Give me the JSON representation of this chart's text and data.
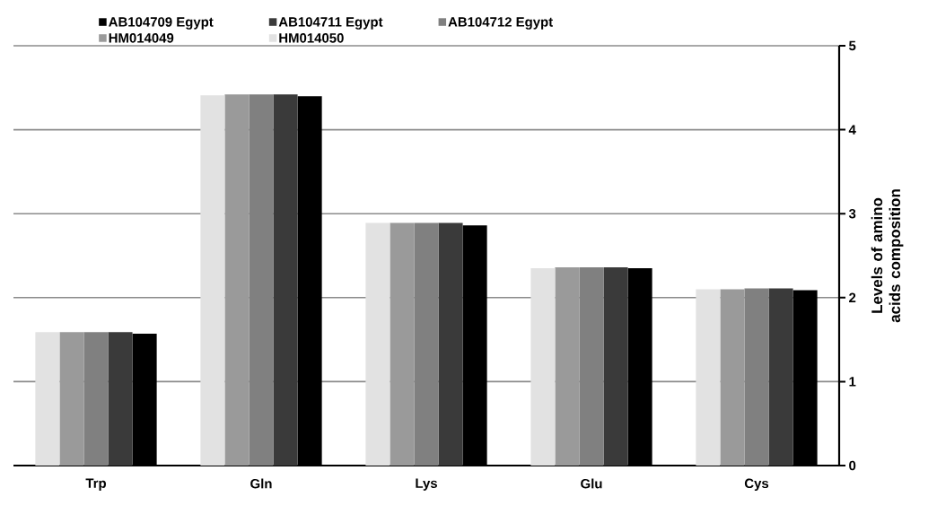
{
  "chart_data": {
    "type": "bar",
    "ylabel": "Levels of amino acids composition",
    "categories": [
      "Trp",
      "Gln",
      "Lys",
      "Glu",
      "Cys"
    ],
    "series": [
      {
        "name": "AB104709 Egypt",
        "color": "#000000",
        "values": [
          1.57,
          4.4,
          2.86,
          2.35,
          2.09
        ]
      },
      {
        "name": "AB104711 Egypt",
        "color": "#3a3a3a",
        "values": [
          1.59,
          4.42,
          2.89,
          2.36,
          2.11
        ]
      },
      {
        "name": "AB104712 Egypt",
        "color": "#808080",
        "values": [
          1.59,
          4.42,
          2.89,
          2.36,
          2.11
        ]
      },
      {
        "name": "HM014049",
        "color": "#9a9a9a",
        "values": [
          1.59,
          4.42,
          2.89,
          2.36,
          2.1
        ]
      },
      {
        "name": "HM014050",
        "color": "#e2e2e2",
        "values": [
          1.59,
          4.41,
          2.89,
          2.35,
          2.1
        ]
      }
    ],
    "ylim": [
      0,
      5
    ],
    "yticks": [
      0,
      1,
      2,
      3,
      4,
      5
    ],
    "grid": "y",
    "legend": "top"
  }
}
